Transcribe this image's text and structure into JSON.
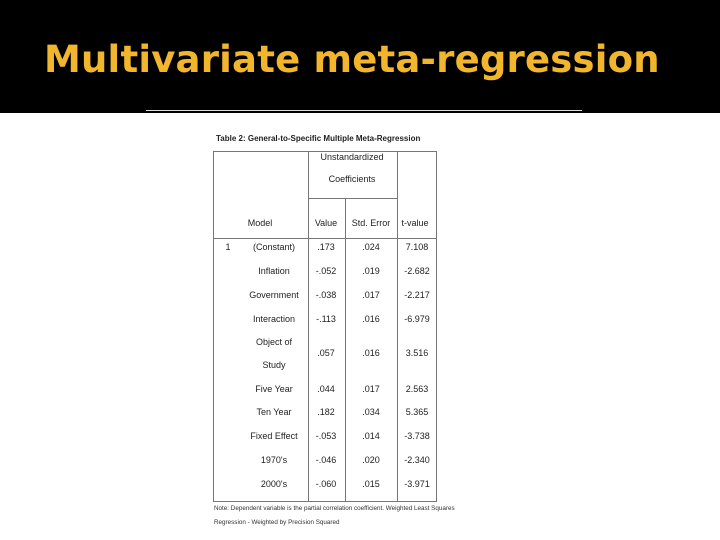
{
  "slide": {
    "title": "Multivariate meta-regression"
  },
  "table": {
    "caption": "Table 2: General-to-Specific Multiple Meta-Regression",
    "group_header_line1": "Unstandardized",
    "group_header_line2": "Coefficients",
    "col_model": "Model",
    "col_value": "Value",
    "col_std_error": "Std. Error",
    "col_t_value": "t-value",
    "model_number": "1",
    "rows": [
      {
        "label": "(Constant)",
        "value": ".173",
        "std_error": ".024",
        "t_value": "7.108"
      },
      {
        "label": "Inflation",
        "value": "-.052",
        "std_error": ".019",
        "t_value": "-2.682"
      },
      {
        "label": "Government",
        "value": "-.038",
        "std_error": ".017",
        "t_value": "-2.217"
      },
      {
        "label": "Interaction",
        "value": "-.113",
        "std_error": ".016",
        "t_value": "-6.979"
      },
      {
        "label": "Object of",
        "label2": "Study",
        "value": ".057",
        "std_error": ".016",
        "t_value": "3.516"
      },
      {
        "label": "Five Year",
        "value": ".044",
        "std_error": ".017",
        "t_value": "2.563"
      },
      {
        "label": "Ten Year",
        "value": ".182",
        "std_error": ".034",
        "t_value": "5.365"
      },
      {
        "label": "Fixed Effect",
        "value": "-.053",
        "std_error": ".014",
        "t_value": "-3.738"
      },
      {
        "label": "1970's",
        "value": "-.046",
        "std_error": ".020",
        "t_value": "-2.340"
      },
      {
        "label": "2000's",
        "value": "-.060",
        "std_error": ".015",
        "t_value": "-3.971"
      }
    ],
    "note_line1": "Note: Dependent variable is the partial correlation coefficient. Weighted Least Squares",
    "note_line2": "Regression - Weighted by Precision Squared"
  }
}
